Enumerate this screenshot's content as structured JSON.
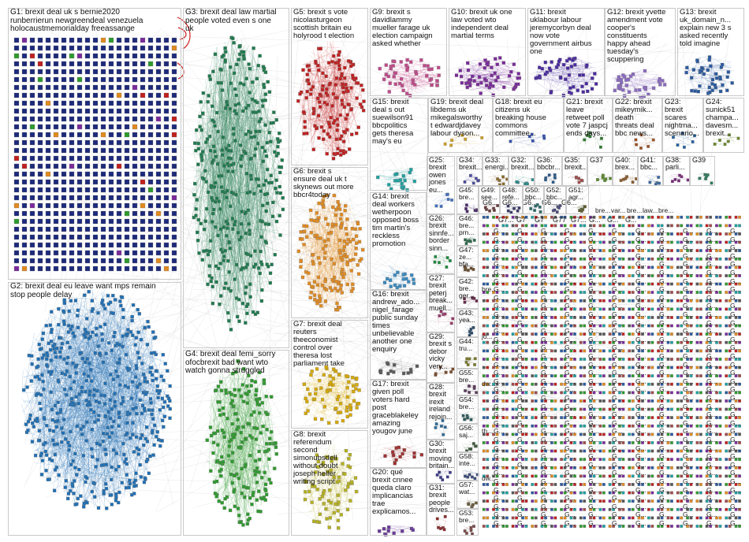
{
  "graph": {
    "groups": [
      {
        "id": "G1",
        "label": "G1: brexit deal uk s bernie2020\nrunberrierun newgreendeal venezuela\nholocaustmemorialday freeassange",
        "color": "#1e2a7a"
      },
      {
        "id": "G2",
        "label": "G2: brexit deal eu leave want mps remain\nstop people delay",
        "color": "#1f6fb4"
      },
      {
        "id": "G3",
        "label": "G3: brexit deal law martial\npeople voted even s one\nuk",
        "color": "#1e7a4e"
      },
      {
        "id": "G4",
        "label": "G4: brexit deal femi_sorry\nofocbrexit bad want wto\nwatch gonna struggled",
        "color": "#2e9a2e"
      },
      {
        "id": "G5",
        "label": "G5: brexit s vote\nnicolasturgeon\nscottish britain eu\nholyrood t election",
        "color": "#c02020"
      },
      {
        "id": "G6",
        "label": "G6: brexit s\nensure deal uk t\nskynews out more\nbbcr4today",
        "color": "#e08a20"
      },
      {
        "id": "G7",
        "label": "G7: brexit deal\nreuters\ntheeconomist\ncontrol over\ntheresa lost\nparliament take",
        "color": "#d6a800"
      },
      {
        "id": "G8",
        "label": "G8: brexit\nreferendum\nsecond\nsimonubsdell\nwithout doubt\njoseph heller\nwriting script",
        "color": "#b5b020"
      },
      {
        "id": "G9",
        "label": "G9: brexit s\ndavidlammy\nmueller farage uk\nelection campaign\nasked whether",
        "color": "#c04a8a"
      },
      {
        "id": "G10",
        "label": "G10: brexit uk one\nlaw voted wto\nindependent deal\nmartial terms",
        "color": "#7a2a9a"
      },
      {
        "id": "G11",
        "label": "G11: brexit\nuklabour labour\njeremycorbyn deal\nnow vote\ngovernment airbus\none",
        "color": "#4a2aa0"
      },
      {
        "id": "G12",
        "label": "G12: brexit yvette\namendment vote\ncooper's\nconstituents\nhappy ahead\ntuesday's\nscuppering",
        "color": "#8a6ac0"
      },
      {
        "id": "G13",
        "label": "G13: brexit\nuk_domain_n...\nexplain new 3 s\nasked recently\ntold imagine",
        "color": "#2a5aa0"
      },
      {
        "id": "G14",
        "label": "G14: brexit\ndeal workers\nwetherpoon\nopposed boss\ntim martin's\nreckless\npromotion",
        "color": "#3a8ac0"
      },
      {
        "id": "G15",
        "label": "G15: brexit\ndeal s out\nsuewilson91\nbbcpolitics\ngets theresa\nmay's eu",
        "color": "#20a0a0"
      },
      {
        "id": "G16",
        "label": "G16: brexit\nandrew_ado...\nnigel_farage\npublic sunday\ntimes\nunbelievable\nanother one\nenquiry",
        "color": "#5a5a5a"
      },
      {
        "id": "G17",
        "label": "G17: brexit\ngiven poll\nvoters hard\npost\ngraceblakeley\namazing\nyougov june",
        "color": "#a03030"
      },
      {
        "id": "G18",
        "label": "G18: brexit eu\ncitizens uk\nbreaking house\ncommons\ncommittee...",
        "color": "#3050b0"
      },
      {
        "id": "G19",
        "label": "G19: brexit deal\nlibdems uk\nmikegalsworthy\nt edwardjdavey\nlabour dyson...",
        "color": "#d0a020"
      },
      {
        "id": "G20",
        "label": "G20: qué\nbrexit cnnee\nqueda claro\nimplicancias\ntrae\nexplicamos...",
        "color": "#6a3a9a"
      },
      {
        "id": "G21",
        "label": "G21: brexit\nleave\nretweet poll\nvote 7 jaspcj\nends days...",
        "color": "#2a7a2a"
      },
      {
        "id": "G22",
        "label": "G22: brexit\nmikeymik...\ndeath\nthreats deal\nbbc news...",
        "color": "#a05020"
      },
      {
        "id": "G23",
        "label": "G23:\nbrexit\nscares\nnightma...\nscenario...",
        "color": "#2060a0"
      },
      {
        "id": "G24",
        "label": "G24:\nsunick51\nchampa...\ndavesm...\nbrexit...",
        "color": "#6a8a2a"
      },
      {
        "id": "G25",
        "label": "G25:\nbrexit\nowen\njones\neu...",
        "color": "#4070c0"
      },
      {
        "id": "G26",
        "label": "G26:\nbrexit\nsinnfe...\nborder\nsinn...",
        "color": "#1a8a3a"
      },
      {
        "id": "G27",
        "label": "G27:\nbrexit\npeterj\nbreak...\nmuell...",
        "color": "#9a3a6a"
      },
      {
        "id": "G28",
        "label": "G28:\nbrexit\nirexit\nireland\nrejoin...",
        "color": "#2a6a9a"
      },
      {
        "id": "G29",
        "label": "G29:\nbrexit s\ndebor\nvicky\nvery...",
        "color": "#7a4a2a"
      },
      {
        "id": "G30",
        "label": "G30:\nbrexit\nmoving\nbritain...",
        "color": "#3a3a8a"
      },
      {
        "id": "G31",
        "label": "G31:\nbrexit\npeople\ndrives...",
        "color": "#8a2a2a"
      },
      {
        "id": "G32",
        "label": "G32:\nbrexit...",
        "color": "#2a8a8a"
      },
      {
        "id": "G33",
        "label": "G33:\nenergi...",
        "color": "#8a6a2a"
      },
      {
        "id": "G34",
        "label": "G34:\nbrexit...",
        "color": "#4a4aa0"
      },
      {
        "id": "G35",
        "label": "G35:\nbrexit...",
        "color": "#a04a4a"
      },
      {
        "id": "G36",
        "label": "G36:\nbbcbr...",
        "color": "#2a5a8a"
      },
      {
        "id": "G37",
        "label": "G37",
        "color": "#5a8a2a"
      },
      {
        "id": "G38",
        "label": "G38:\nparli...",
        "color": "#7a2a7a"
      },
      {
        "id": "G39",
        "label": "G39",
        "color": "#2a7a5a"
      },
      {
        "id": "G40",
        "label": "G40:\nbrex...",
        "color": "#8a5a2a"
      },
      {
        "id": "G41",
        "label": "G41:\nbbc...",
        "color": "#3a6aa0"
      },
      {
        "id": "G42",
        "label": "G42:\nbre...\nger...",
        "color": "#6a2a4a"
      },
      {
        "id": "G43",
        "label": "G43:\nyea...",
        "color": "#2a4a6a"
      },
      {
        "id": "G44",
        "label": "G44:\ntru...",
        "color": "#7a7a2a"
      },
      {
        "id": "G45",
        "label": "G45:\nbre...",
        "color": "#4a2a6a"
      },
      {
        "id": "G46",
        "label": "G46:\nbre...\nprn...",
        "color": "#2a6a4a"
      },
      {
        "id": "G47",
        "label": "G47:\nze...\nbfa...",
        "color": "#6a4a2a"
      },
      {
        "id": "G48",
        "label": "G48:\nrefe...",
        "color": "#3a3a6a"
      },
      {
        "id": "G49",
        "label": "G49:\nsee...",
        "color": "#6a3a3a"
      },
      {
        "id": "G50",
        "label": "G50:\nbbc...",
        "color": "#2a6a6a"
      },
      {
        "id": "G51",
        "label": "G51:\nagr...",
        "color": "#5a5a2a"
      },
      {
        "id": "G52",
        "label": "G52:\nbbc...",
        "color": "#4a4a7a"
      },
      {
        "id": "G53",
        "label": "G53:\nbre...",
        "color": "#7a4a4a"
      },
      {
        "id": "G54",
        "label": "G54:\nbre...",
        "color": "#2a5a5a"
      },
      {
        "id": "G55",
        "label": "G55:\nbre...",
        "color": "#5a3a5a"
      },
      {
        "id": "G56",
        "label": "G56:\nsaj...",
        "color": "#3a5a3a"
      },
      {
        "id": "G57",
        "label": "G57:\nwat...",
        "color": "#6a5a3a"
      },
      {
        "id": "G58",
        "label": "G58:\ninte...",
        "color": "#3a4a7a"
      }
    ],
    "small_labels": [
      "G6...",
      "G6...",
      "G6...",
      "G6...",
      "G6...",
      "G7...",
      "G7",
      "G7",
      "G77",
      "G7...",
      "G...",
      "G...",
      "G..."
    ],
    "small_words": [
      "bre...",
      "var...",
      "bre...",
      "law...",
      "bre...",
      "bre...",
      "jo...",
      "dw...",
      "th...",
      "dw..."
    ]
  }
}
